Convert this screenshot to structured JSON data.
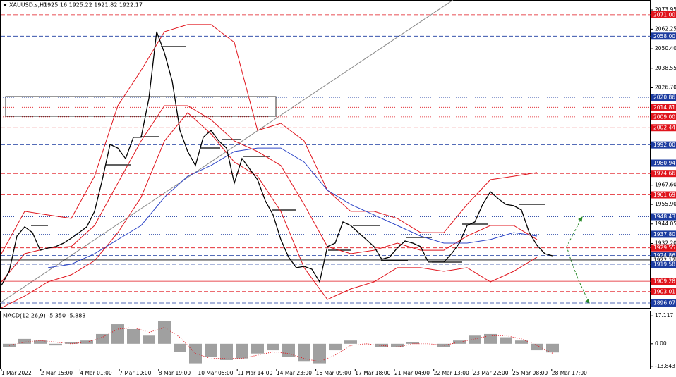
{
  "chart_data": [
    {
      "type": "line",
      "title": "XAUUSD.s,H1",
      "subtitle": "1925.16 1925.22 1921.82 1922.17",
      "xtick_labels": [
        "1 Mar 2022",
        "2 Mar 15:00",
        "4 Mar 01:00",
        "7 Mar 10:00",
        "8 Mar 19:00",
        "10 Mar 05:00",
        "11 Mar 14:00",
        "14 Mar 23:00",
        "16 Mar 09:00",
        "17 Mar 18:00",
        "21 Mar 04:00",
        "22 Mar 13:00",
        "23 Mar 22:00",
        "25 Mar 08:00",
        "28 Mar 17:00"
      ],
      "series": [
        {
          "color": "#000000",
          "values": [
            1906.8,
            1915.3,
            1936.7,
            1942.3,
            1938.8,
            1928.1,
            1929.4,
            1930.3,
            1932.4,
            1935.4,
            1938.8,
            1942.3,
            1951.7,
            1970.9,
            1992.3,
            1990.1,
            1983.7,
            1996.6,
            1996.6,
            2020.1,
            2060.7,
            2047.9,
            2030.8,
            2000.8,
            1988.0,
            1979.5,
            1996.6,
            2000.8,
            1994.4,
            1990.1,
            1968.8,
            1983.7,
            1977.3,
            1970.9,
            1958.1,
            1949.5,
            1934.6,
            1923.9,
            1917.5,
            1918.3,
            1916.6,
            1908.9,
            1930.3,
            1932.4,
            1945.3,
            1943.1,
            1938.8,
            1934.6,
            1930.3,
            1922.6,
            1923.9,
            1929.4,
            1933.7,
            1932.4,
            1930.3,
            1920.9,
            1920.9,
            1920.9,
            1926.0,
            1932.4,
            1943.1,
            1945.3,
            1955.9,
            1963.6,
            1959.4,
            1955.9,
            1955.1,
            1952.5,
            1938.8,
            1931.1,
            1926.0,
            1924.7
          ]
        }
      ],
      "bands": [
        {
          "color": "#e0141c",
          "values": [
            1926.0,
            1951.7,
            1949.5,
            1947.4,
            1973.0,
            2015.8,
            2037.2,
            2060.7,
            2065.0,
            2065.0,
            2054.3,
            2000.8,
            2005.1,
            1994.4,
            1964.5,
            1951.7,
            1951.7,
            1947.4,
            1938.8,
            1938.8,
            1955.9,
            1970.9,
            1973.0,
            1975.2
          ]
        },
        {
          "color": "#e0141c",
          "values": [
            1908.9,
            1926.0,
            1929.4,
            1930.3,
            1943.1,
            1968.8,
            1994.4,
            2015.8,
            2015.8,
            2007.3,
            1994.4,
            1988.0,
            1979.5,
            1955.9,
            1930.3,
            1926.0,
            1928.1,
            1932.4,
            1928.1,
            1928.1,
            1936.7,
            1943.1,
            1943.1,
            1934.6
          ]
        },
        {
          "color": "#e0141c",
          "values": [
            1893.1,
            1900.3,
            1908.9,
            1913.2,
            1921.7,
            1938.8,
            1960.2,
            1994.4,
            2011.5,
            1998.7,
            1981.6,
            1973.0,
            1951.7,
            1917.5,
            1898.2,
            1904.6,
            1908.9,
            1917.5,
            1917.5,
            1915.3,
            1917.5,
            1908.9,
            1915.3,
            1923.9
          ]
        },
        {
          "color": "#3048c8",
          "values": [
            null,
            null,
            1917.5,
            1919.6,
            1926.0,
            1934.6,
            1943.1,
            1960.2,
            1973.0,
            1979.5,
            1988.0,
            1990.1,
            1990.1,
            1981.6,
            1964.5,
            1955.9,
            1949.5,
            1943.1,
            1936.7,
            1932.4,
            1932.4,
            1934.6,
            1938.8,
            1936.7
          ]
        }
      ],
      "levels": [
        {
          "value": 2071,
          "label": "2071.00",
          "color": "#e0141c",
          "style": "dashed"
        },
        {
          "value": 2058,
          "label": "2058.00",
          "color": "#1c3ca0",
          "style": "dashed"
        },
        {
          "value": 2020.86,
          "label": "2020.86",
          "color": "#1c3ca0",
          "style": "dotted"
        },
        {
          "value": 2014.81,
          "label": "2014.81",
          "color": "#e0141c",
          "style": "dotted"
        },
        {
          "value": 2009,
          "label": "2009.00",
          "color": "#e0141c",
          "style": "dotted"
        },
        {
          "value": 2002.44,
          "label": "2002.44",
          "color": "#e0141c",
          "style": "dashed"
        },
        {
          "value": 1992,
          "label": "1992.00",
          "color": "#1c3ca0",
          "style": "dashed"
        },
        {
          "value": 1980.94,
          "label": "1980.94",
          "color": "#1c3ca0",
          "style": "dashed"
        },
        {
          "value": 1974.66,
          "label": "1974.66",
          "color": "#e0141c",
          "style": "dashed"
        },
        {
          "value": 1961.69,
          "label": "1961.69",
          "color": "#e0141c",
          "style": "dashed"
        },
        {
          "value": 1948.43,
          "label": "1948.43",
          "color": "#1c3ca0",
          "style": "dotted"
        },
        {
          "value": 1937.8,
          "label": "1937.80",
          "color": "#1c3ca0",
          "style": "dotted"
        },
        {
          "value": 1929.55,
          "label": "1929.55",
          "color": "#e0141c",
          "style": "dashed"
        },
        {
          "value": 1924.86,
          "label": "1924.86",
          "color": "#1c3ca0",
          "style": "dashed"
        },
        {
          "value": 1922.17,
          "label": "1922.17",
          "color": "#000000",
          "style": "solid"
        },
        {
          "value": 1919.58,
          "label": "1919.58",
          "color": "#1c3ca0",
          "style": "dashed"
        },
        {
          "value": 1909.28,
          "label": "1909.28",
          "color": "#e0141c",
          "style": "solid"
        },
        {
          "value": 1903.01,
          "label": "1903.01",
          "color": "#e0141c",
          "style": "dashed"
        },
        {
          "value": 1896.07,
          "label": "1896.07",
          "color": "#1c3ca0",
          "style": "dashed"
        }
      ],
      "ylim": [
        1893.07,
        2079.94
      ],
      "yticks": [
        2073.95,
        2062.25,
        {
          "value": 2050.4,
          "label": "2050.40"
        },
        2038.55,
        {
          "value": 2026.7,
          "label": "2026.70"
        },
        {
          "value": 1967.6,
          "label": "1967.60"
        },
        {
          "value": 1955.9,
          "label": "1955.90"
        },
        1944.05,
        {
          "value": 1932.2,
          "label": "1932.20"
        }
      ]
    },
    {
      "type": "bar",
      "title": "MACD(12,26,9) -5.350 -5.883",
      "color": "#a0a0a0",
      "values": [
        -2,
        3,
        2,
        -1,
        1,
        2,
        6,
        12,
        9,
        5,
        14,
        -5,
        -12,
        -8,
        -10,
        -9,
        -6,
        -4,
        -8,
        -11,
        -12,
        -4,
        2,
        0,
        -2,
        -2,
        1,
        0,
        -2,
        2,
        5,
        6,
        4,
        2,
        -4,
        -5.35
      ],
      "signal": {
        "color": "#e0141c",
        "values": [
          -1,
          1,
          2,
          1,
          0,
          1,
          4,
          9,
          10,
          7,
          10,
          4,
          -6,
          -9,
          -9,
          -9,
          -7,
          -5,
          -6,
          -9,
          -11,
          -7,
          -1,
          0,
          -1,
          -2,
          0,
          0,
          -1,
          1,
          3,
          5,
          5,
          3,
          -1,
          -5.883
        ]
      },
      "ylim": [
        -15.2,
        19.8
      ],
      "yticks": [
        17.117,
        {
          "value": 0,
          "label": "0.00"
        },
        -13.843
      ]
    }
  ]
}
